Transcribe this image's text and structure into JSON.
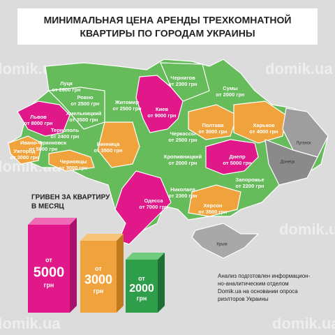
{
  "title": [
    "МИНИМАЛЬНАЯ ЦЕНА АРЕНДЫ ТРЕХКОМНАТНОЙ",
    "КВАРТИРЫ ПО ГОРОДАМ УКРАИНЫ"
  ],
  "watermark": "domik.ua",
  "cities": [
    {
      "name": "Луцк",
      "price": "от 2600 грн"
    },
    {
      "name": "Ровно",
      "price": "от 2500 грн"
    },
    {
      "name": "Житомир",
      "price": "от 2500 грн"
    },
    {
      "name": "Чернигов",
      "price": "от 2300 грн"
    },
    {
      "name": "Сумы",
      "price": "от 2000 грн"
    },
    {
      "name": "Киев",
      "price": "от 9000 грн"
    },
    {
      "name": "Львов",
      "price": "от 8000 грн"
    },
    {
      "name": "Хмельницкий",
      "price": "от 3500 грн"
    },
    {
      "name": "Тернополь",
      "price": "от 2400 грн"
    },
    {
      "name": "Полтава",
      "price": "от 3000 грн"
    },
    {
      "name": "Харьков",
      "price": "от 4000 грн"
    },
    {
      "name": "Ивано-Франковск",
      "price": "от 5000 грн"
    },
    {
      "name": "Винница",
      "price": "от 3500 грн"
    },
    {
      "name": "Черкассы",
      "price": "от 2500 грн"
    },
    {
      "name": "Ужгород",
      "price": "от 3000 грн"
    },
    {
      "name": "Черновцы",
      "price": "от 3000 грн"
    },
    {
      "name": "Кропивницкий",
      "price": "от 2000 грн"
    },
    {
      "name": "Днепр",
      "price": "от 5000 грн"
    },
    {
      "name": "Запорожье",
      "price": "от 2200 грн"
    },
    {
      "name": "Николаев",
      "price": "от 2300 грн"
    },
    {
      "name": "Одесса",
      "price": "от 7000 грн"
    },
    {
      "name": "Херсон",
      "price": "от 3500 грн"
    }
  ],
  "occupied": [
    "Луганск",
    "Донецк",
    "Крым"
  ],
  "legend": {
    "title": [
      "ГРИВЕН ЗА КВАРТИРУ",
      "В МЕСЯЦ"
    ],
    "levels": [
      {
        "prefix": "от",
        "amount": "5000",
        "unit": "грн"
      },
      {
        "prefix": "от",
        "amount": "3000",
        "unit": "грн"
      },
      {
        "prefix": "от",
        "amount": "2000",
        "unit": "грн"
      }
    ]
  },
  "note": [
    "Анализ подготовлен информацион-",
    "но-аналитическим отделом",
    "Domik.ua на основании опроса",
    "риэлторов Украины"
  ]
}
